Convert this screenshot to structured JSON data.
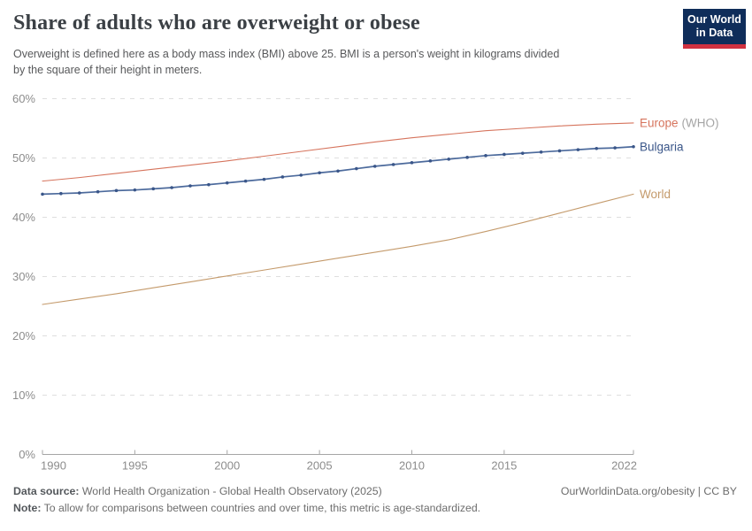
{
  "header": {
    "title": "Share of adults who are overweight or obese",
    "subtitle_lines": [
      "Overweight is defined here as a body mass index (BMI) above 25. BMI is a person's weight in kilograms divided",
      "by the square of their height in meters."
    ]
  },
  "logo": {
    "line1": "Our World",
    "line2": "in Data",
    "bg_color": "#0f2d5a",
    "stripe_color": "#d03140"
  },
  "chart_data": {
    "type": "line",
    "title": "Share of adults who are overweight or obese",
    "xlabel": "",
    "ylabel": "",
    "xlim": [
      1990,
      2022
    ],
    "ylim": [
      0,
      60
    ],
    "x_ticks": [
      1990,
      1995,
      2000,
      2005,
      2010,
      2015,
      2022
    ],
    "y_ticks": [
      0,
      10,
      20,
      30,
      40,
      50,
      60
    ],
    "y_tick_suffix": "%",
    "grid": "horizontal-dashed",
    "legend_position": "right-edge-labels",
    "series": [
      {
        "name": "Europe (WHO)",
        "label": "Europe",
        "label_suffix": "(WHO)",
        "suffix_color": "#a5a5a5",
        "color": "#d6745d",
        "label_color": "#d6745d",
        "line_width": 1.1,
        "markers": false,
        "x": [
          1990,
          1992,
          1994,
          1996,
          1998,
          2000,
          2002,
          2004,
          2006,
          2008,
          2010,
          2012,
          2014,
          2016,
          2018,
          2020,
          2022
        ],
        "values": [
          46.1,
          46.7,
          47.4,
          48.1,
          48.8,
          49.5,
          50.3,
          51.1,
          51.9,
          52.7,
          53.4,
          54.0,
          54.6,
          55.0,
          55.4,
          55.7,
          55.9
        ]
      },
      {
        "name": "Bulgaria",
        "label": "Bulgaria",
        "label_suffix": "",
        "suffix_color": "#a5a5a5",
        "color": "#4c6a9c",
        "marker_color": "#3a5689",
        "label_color": "#3a5689",
        "line_width": 1.7,
        "markers": true,
        "x": [
          1990,
          1991,
          1992,
          1993,
          1994,
          1995,
          1996,
          1997,
          1998,
          1999,
          2000,
          2001,
          2002,
          2003,
          2004,
          2005,
          2006,
          2007,
          2008,
          2009,
          2010,
          2011,
          2012,
          2013,
          2014,
          2015,
          2016,
          2017,
          2018,
          2019,
          2020,
          2021,
          2022
        ],
        "values": [
          43.9,
          44.0,
          44.1,
          44.3,
          44.5,
          44.6,
          44.8,
          45.0,
          45.3,
          45.5,
          45.8,
          46.1,
          46.4,
          46.8,
          47.1,
          47.5,
          47.8,
          48.2,
          48.6,
          48.9,
          49.2,
          49.5,
          49.8,
          50.1,
          50.4,
          50.6,
          50.8,
          51.0,
          51.2,
          51.4,
          51.6,
          51.7,
          51.9
        ]
      },
      {
        "name": "World",
        "label": "World",
        "label_suffix": "",
        "suffix_color": "#a5a5a5",
        "color": "#c49a6b",
        "label_color": "#c49a6b",
        "line_width": 1.1,
        "markers": false,
        "x": [
          1990,
          1992,
          1994,
          1996,
          1998,
          2000,
          2002,
          2004,
          2006,
          2008,
          2010,
          2012,
          2014,
          2016,
          2018,
          2020,
          2022
        ],
        "values": [
          25.3,
          26.2,
          27.1,
          28.1,
          29.1,
          30.1,
          31.1,
          32.1,
          33.1,
          34.1,
          35.1,
          36.2,
          37.6,
          39.1,
          40.7,
          42.3,
          43.9
        ]
      }
    ]
  },
  "footer": {
    "datasource_label": "Data source:",
    "datasource_text": "World Health Organization - Global Health Observatory (2025)",
    "rights": "OurWorldinData.org/obesity | CC BY",
    "note_label": "Note:",
    "note_text": "To allow for comparisons between countries and over time, this metric is age-standardized."
  }
}
